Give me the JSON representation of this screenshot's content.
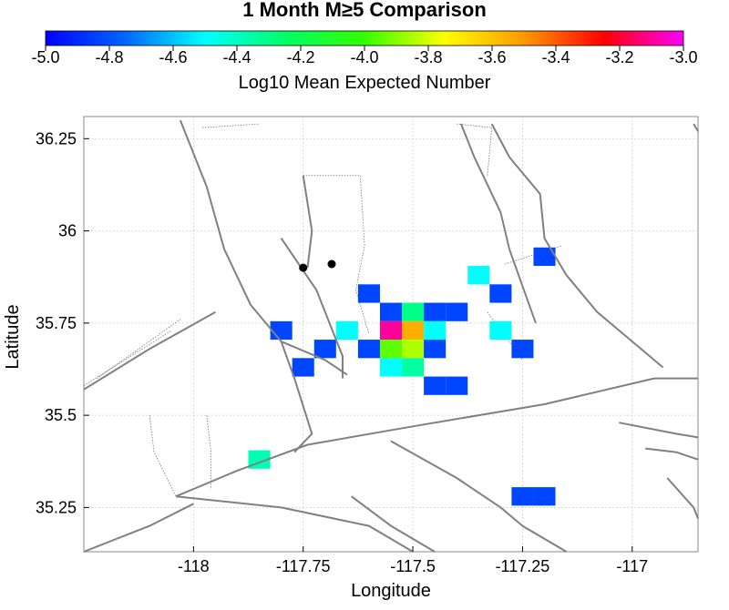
{
  "chart_data": {
    "type": "heatmap",
    "title": "1 Month M≥5 Comparison",
    "colorbar": {
      "label": "Log10 Mean Expected Number",
      "range": [
        -5.0,
        -3.0
      ],
      "ticks": [
        "-5.0",
        "-4.8",
        "-4.6",
        "-4.4",
        "-4.2",
        "-4.0",
        "-3.8",
        "-3.6",
        "-3.4",
        "-3.2",
        "-3.0"
      ],
      "tick_values": [
        -5.0,
        -4.8,
        -4.6,
        -4.4,
        -4.2,
        -4.0,
        -3.8,
        -3.6,
        -3.4,
        -3.2,
        -3.0
      ],
      "colormap": [
        "#0000ff",
        "#0066ff",
        "#00ffff",
        "#00ff66",
        "#33ff00",
        "#ffff00",
        "#ff9900",
        "#ff0000",
        "#ff00ff"
      ]
    },
    "xlabel": "Longitude",
    "ylabel": "Latitude",
    "xlim": [
      -118.25,
      -116.85
    ],
    "ylim": [
      35.13,
      36.31
    ],
    "xticks": [
      -118,
      -117.75,
      -117.5,
      -117.25,
      -117
    ],
    "xtick_labels": [
      "-118",
      "-117.75",
      "-117.5",
      "-117.25",
      "-117"
    ],
    "yticks": [
      35.25,
      35.5,
      35.75,
      36,
      36.25
    ],
    "ytick_labels": [
      "35.25",
      "35.5",
      "35.75",
      "36",
      "36.25"
    ],
    "grid": true,
    "cells": [
      {
        "lon": -117.85,
        "lat": 35.38,
        "value": -4.38
      },
      {
        "lon": -117.8,
        "lat": 35.73,
        "value": -4.83
      },
      {
        "lon": -117.75,
        "lat": 35.63,
        "value": -4.83
      },
      {
        "lon": -117.7,
        "lat": 35.68,
        "value": -4.83
      },
      {
        "lon": -117.65,
        "lat": 35.73,
        "value": -4.5
      },
      {
        "lon": -117.6,
        "lat": 35.83,
        "value": -4.83
      },
      {
        "lon": -117.6,
        "lat": 35.68,
        "value": -4.83
      },
      {
        "lon": -117.55,
        "lat": 35.78,
        "value": -4.83
      },
      {
        "lon": -117.55,
        "lat": 35.73,
        "value": -3.1
      },
      {
        "lon": -117.55,
        "lat": 35.68,
        "value": -3.95
      },
      {
        "lon": -117.55,
        "lat": 35.63,
        "value": -4.5
      },
      {
        "lon": -117.5,
        "lat": 35.78,
        "value": -4.3
      },
      {
        "lon": -117.5,
        "lat": 35.73,
        "value": -3.55
      },
      {
        "lon": -117.5,
        "lat": 35.68,
        "value": -3.85
      },
      {
        "lon": -117.5,
        "lat": 35.63,
        "value": -4.35
      },
      {
        "lon": -117.45,
        "lat": 35.78,
        "value": -4.83
      },
      {
        "lon": -117.45,
        "lat": 35.73,
        "value": -4.5
      },
      {
        "lon": -117.45,
        "lat": 35.68,
        "value": -4.83
      },
      {
        "lon": -117.45,
        "lat": 35.58,
        "value": -4.83
      },
      {
        "lon": -117.4,
        "lat": 35.78,
        "value": -4.83
      },
      {
        "lon": -117.4,
        "lat": 35.58,
        "value": -4.83
      },
      {
        "lon": -117.35,
        "lat": 35.88,
        "value": -4.5
      },
      {
        "lon": -117.3,
        "lat": 35.83,
        "value": -4.83
      },
      {
        "lon": -117.3,
        "lat": 35.73,
        "value": -4.5
      },
      {
        "lon": -117.25,
        "lat": 35.68,
        "value": -4.83
      },
      {
        "lon": -117.2,
        "lat": 35.93,
        "value": -4.83
      },
      {
        "lon": -117.25,
        "lat": 35.28,
        "value": -4.83
      },
      {
        "lon": -117.2,
        "lat": 35.28,
        "value": -4.83
      }
    ],
    "cell_size_deg": 0.05,
    "points": [
      {
        "lon": -117.75,
        "lat": 35.9
      },
      {
        "lon": -117.685,
        "lat": 35.91
      }
    ],
    "faults": [
      [
        [
          -118.25,
          35.57
        ],
        [
          -118.1,
          35.68
        ],
        [
          -117.95,
          35.78
        ]
      ],
      [
        [
          -118.03,
          36.3
        ],
        [
          -117.97,
          36.12
        ],
        [
          -117.93,
          35.95
        ],
        [
          -117.87,
          35.8
        ],
        [
          -117.8,
          35.7
        ],
        [
          -117.77,
          35.6
        ],
        [
          -117.73,
          35.45
        ],
        [
          -117.77,
          35.4
        ]
      ],
      [
        [
          -117.8,
          35.98
        ],
        [
          -117.72,
          35.84
        ],
        [
          -117.66,
          35.66
        ],
        [
          -117.66,
          35.6
        ]
      ],
      [
        [
          -117.8,
          35.7
        ],
        [
          -117.7,
          35.65
        ],
        [
          -117.65,
          35.61
        ]
      ],
      [
        [
          -117.75,
          36.15
        ],
        [
          -117.73,
          36.0
        ],
        [
          -117.74,
          35.9
        ]
      ],
      [
        [
          -118.04,
          35.28
        ],
        [
          -117.9,
          35.35
        ],
        [
          -117.74,
          35.42
        ],
        [
          -117.5,
          35.47
        ],
        [
          -117.2,
          35.53
        ],
        [
          -116.95,
          35.6
        ],
        [
          -116.85,
          35.6
        ]
      ],
      [
        [
          -118.04,
          35.28
        ],
        [
          -117.8,
          35.25
        ],
        [
          -117.6,
          35.2
        ],
        [
          -117.5,
          35.13
        ]
      ],
      [
        [
          -118.25,
          35.13
        ],
        [
          -118.1,
          35.2
        ],
        [
          -118.0,
          35.26
        ]
      ],
      [
        [
          -117.55,
          35.43
        ],
        [
          -117.4,
          35.33
        ],
        [
          -117.3,
          35.25
        ],
        [
          -117.25,
          35.2
        ],
        [
          -117.15,
          35.13
        ]
      ],
      [
        [
          -117.64,
          35.28
        ],
        [
          -117.55,
          35.2
        ],
        [
          -117.45,
          35.13
        ]
      ],
      [
        [
          -117.32,
          36.29
        ],
        [
          -117.28,
          36.2
        ],
        [
          -117.21,
          36.1
        ],
        [
          -117.2,
          35.98
        ],
        [
          -117.15,
          35.88
        ],
        [
          -117.08,
          35.78
        ],
        [
          -117.0,
          35.7
        ],
        [
          -116.93,
          35.63
        ]
      ],
      [
        [
          -117.39,
          36.29
        ],
        [
          -117.36,
          36.2
        ],
        [
          -117.3,
          36.05
        ],
        [
          -117.28,
          35.95
        ],
        [
          -117.25,
          35.85
        ],
        [
          -117.22,
          35.75
        ]
      ],
      [
        [
          -117.03,
          35.48
        ],
        [
          -116.9,
          35.45
        ],
        [
          -116.85,
          35.44
        ]
      ],
      [
        [
          -116.97,
          35.41
        ],
        [
          -116.9,
          35.4
        ],
        [
          -116.85,
          35.38
        ]
      ],
      [
        [
          -116.92,
          35.33
        ],
        [
          -116.86,
          35.25
        ],
        [
          -116.85,
          35.22
        ]
      ],
      [
        [
          -116.86,
          36.29
        ],
        [
          -116.85,
          36.27
        ]
      ]
    ],
    "fault_segments_dotted": [
      [
        [
          -117.98,
          36.28
        ],
        [
          -117.85,
          36.29
        ]
      ],
      [
        [
          -117.75,
          36.15
        ],
        [
          -117.62,
          36.15
        ],
        [
          -117.61,
          35.96
        ],
        [
          -117.63,
          35.84
        ],
        [
          -117.6,
          35.72
        ]
      ],
      [
        [
          -118.1,
          35.5
        ],
        [
          -118.09,
          35.4
        ],
        [
          -118.04,
          35.28
        ]
      ],
      [
        [
          -117.97,
          35.5
        ],
        [
          -117.96,
          35.4
        ],
        [
          -117.96,
          35.3
        ]
      ],
      [
        [
          -118.25,
          35.58
        ],
        [
          -118.05,
          35.73
        ]
      ],
      [
        [
          -118.22,
          35.6
        ],
        [
          -118.03,
          35.76
        ]
      ],
      [
        [
          -117.29,
          35.91
        ],
        [
          -117.16,
          35.96
        ]
      ],
      [
        [
          -117.33,
          35.78
        ],
        [
          -117.25,
          35.65
        ]
      ],
      [
        [
          -117.4,
          36.29
        ],
        [
          -117.32,
          36.28
        ],
        [
          -117.33,
          36.15
        ]
      ]
    ],
    "lon_lines_dotted": [
      -117.9,
      -117.7,
      -117.2,
      -116.9
    ],
    "lat_lines_dotted": [
      36.25,
      36.0,
      35.75,
      35.5,
      35.25
    ]
  }
}
